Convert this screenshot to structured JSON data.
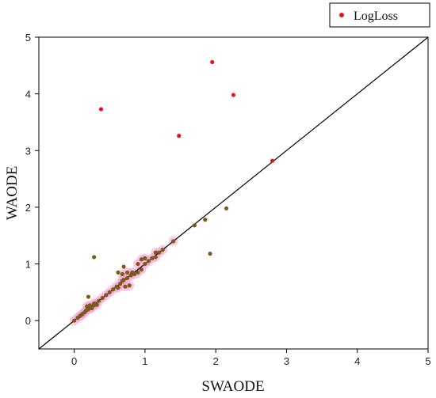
{
  "chart_data": {
    "type": "scatter",
    "title": "",
    "xlabel": "SWAODE",
    "ylabel": "WAODE",
    "xlim": [
      -0.5,
      5
    ],
    "ylim": [
      -0.5,
      5
    ],
    "xticks": [
      "0",
      "1",
      "2",
      "3",
      "4",
      "5"
    ],
    "yticks": [
      "0",
      "1",
      "2",
      "3",
      "4",
      "5"
    ],
    "grid": false,
    "legend_position": "top-right",
    "reference_line": "y = x",
    "colors": {
      "series": "#e8141c",
      "overlap": "#7a5a1e",
      "reference_line": "#000000",
      "halo": "#f4a3cf"
    },
    "series": [
      {
        "name": "LogLoss",
        "points": [
          [
            0.0,
            0.0
          ],
          [
            0.05,
            0.05
          ],
          [
            0.08,
            0.08
          ],
          [
            0.1,
            0.1
          ],
          [
            0.12,
            0.12
          ],
          [
            0.15,
            0.15
          ],
          [
            0.17,
            0.18
          ],
          [
            0.2,
            0.2
          ],
          [
            0.22,
            0.22
          ],
          [
            0.25,
            0.25
          ],
          [
            0.28,
            0.27
          ],
          [
            0.3,
            0.3
          ],
          [
            0.18,
            0.25
          ],
          [
            0.22,
            0.27
          ],
          [
            0.25,
            0.22
          ],
          [
            0.28,
            0.3
          ],
          [
            0.32,
            0.28
          ],
          [
            0.2,
            0.42
          ],
          [
            0.35,
            0.35
          ],
          [
            0.4,
            0.4
          ],
          [
            0.45,
            0.45
          ],
          [
            0.5,
            0.5
          ],
          [
            0.55,
            0.55
          ],
          [
            0.6,
            0.6
          ],
          [
            0.62,
            0.58
          ],
          [
            0.65,
            0.65
          ],
          [
            0.68,
            0.7
          ],
          [
            0.7,
            0.72
          ],
          [
            0.75,
            0.75
          ],
          [
            0.72,
            0.6
          ],
          [
            0.78,
            0.62
          ],
          [
            0.8,
            0.8
          ],
          [
            0.85,
            0.82
          ],
          [
            0.9,
            0.85
          ],
          [
            0.95,
            0.9
          ],
          [
            1.0,
            1.0
          ],
          [
            1.05,
            1.05
          ],
          [
            1.1,
            1.1
          ],
          [
            1.15,
            1.12
          ],
          [
            1.2,
            1.2
          ],
          [
            1.25,
            1.25
          ],
          [
            0.62,
            0.85
          ],
          [
            0.68,
            0.82
          ],
          [
            0.7,
            0.95
          ],
          [
            0.75,
            0.85
          ],
          [
            0.82,
            0.85
          ],
          [
            0.9,
            1.0
          ],
          [
            0.95,
            1.08
          ],
          [
            1.0,
            1.1
          ],
          [
            1.15,
            1.2
          ],
          [
            0.28,
            1.12
          ],
          [
            1.4,
            1.4
          ],
          [
            1.7,
            1.68
          ],
          [
            1.85,
            1.78
          ],
          [
            1.92,
            1.18
          ],
          [
            2.15,
            1.98
          ],
          [
            2.8,
            2.82
          ],
          [
            1.48,
            3.26
          ],
          [
            0.38,
            3.73
          ],
          [
            2.25,
            3.98
          ],
          [
            1.95,
            4.56
          ]
        ]
      }
    ]
  }
}
